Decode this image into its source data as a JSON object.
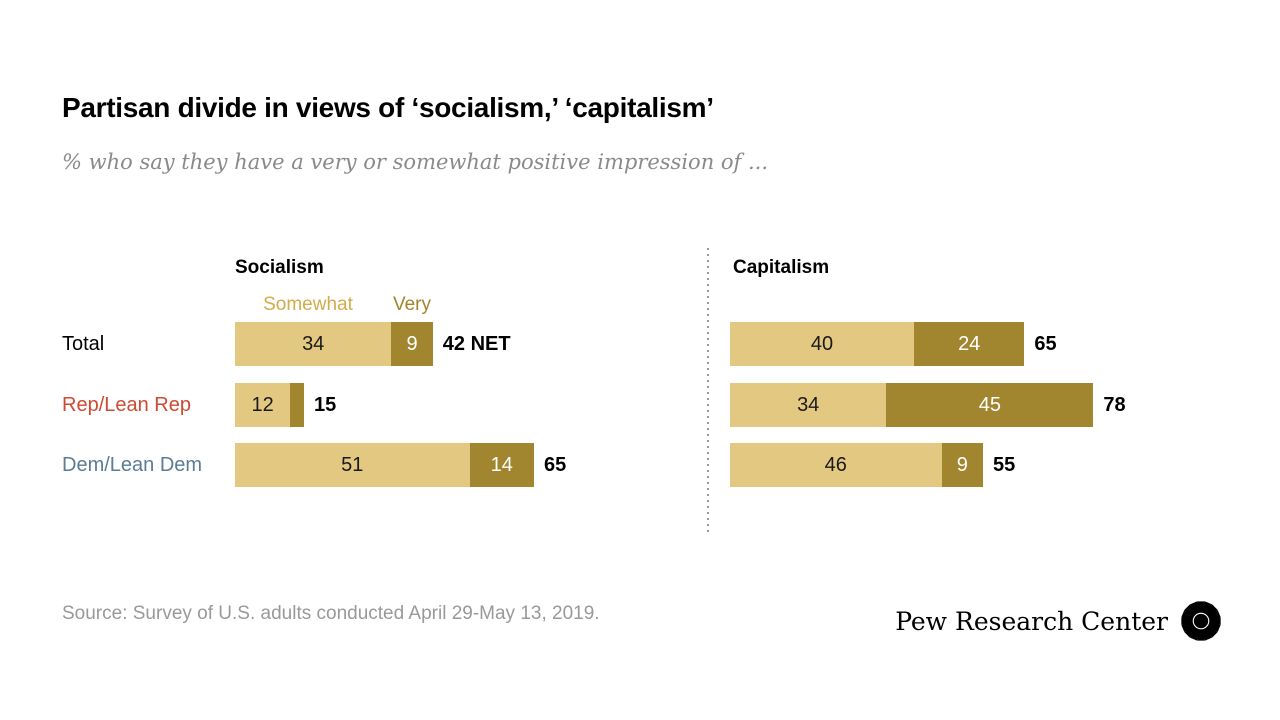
{
  "header": {
    "title": "Partisan divide in views of ‘socialism,’ ‘capitalism’",
    "subtitle": "% who say they have a very or somewhat positive impression of ..."
  },
  "footer": {
    "source": "Source: Survey of U.S. adults conducted April 29-May 13, 2019.",
    "brand": "Pew Research Center"
  },
  "colors": {
    "somewhat_bar": "#E3C882",
    "very_bar": "#A1852F",
    "somewhat_legend_text": "#D2AB4B",
    "very_legend_text": "#A1842D",
    "light_bar_value_text": "#1a1a1a",
    "dark_bar_value_text": "#ffffff",
    "total_label": "#000000",
    "rep_label": "#CF4A32",
    "dem_label": "#5A7D95",
    "subtitle_text": "#8a8a8a",
    "source_text": "#999999",
    "divider": "#9a9a9a"
  },
  "chart_data": {
    "type": "bar",
    "orientation": "horizontal",
    "stacked": true,
    "value_unit": "percent",
    "xlim": [
      0,
      100
    ],
    "grid": false,
    "legend": [
      "Somewhat",
      "Very"
    ],
    "legend_position": "above first row of Socialism panel",
    "categories": [
      {
        "label": "Total",
        "color": "#000000"
      },
      {
        "label": "Rep/Lean Rep",
        "color": "#CF4A32"
      },
      {
        "label": "Dem/Lean Dem",
        "color": "#5A7D95"
      }
    ],
    "panels": [
      {
        "title": "Socialism",
        "rows": [
          {
            "category": "Total",
            "somewhat": 34,
            "very": 9,
            "somewhat_label": "34",
            "very_label": "9",
            "net": 42,
            "net_label": "42 NET"
          },
          {
            "category": "Rep/Lean Rep",
            "somewhat": 12,
            "very": 3,
            "somewhat_label": "12",
            "very_label": "",
            "net": 15,
            "net_label": "15"
          },
          {
            "category": "Dem/Lean Dem",
            "somewhat": 51,
            "very": 14,
            "somewhat_label": "51",
            "very_label": "14",
            "net": 65,
            "net_label": "65"
          }
        ]
      },
      {
        "title": "Capitalism",
        "rows": [
          {
            "category": "Total",
            "somewhat": 40,
            "very": 24,
            "somewhat_label": "40",
            "very_label": "24",
            "net": 65,
            "net_label": "65"
          },
          {
            "category": "Rep/Lean Rep",
            "somewhat": 34,
            "very": 45,
            "somewhat_label": "34",
            "very_label": "45",
            "net": 78,
            "net_label": "78"
          },
          {
            "category": "Dem/Lean Dem",
            "somewhat": 46,
            "very": 9,
            "somewhat_label": "46",
            "very_label": "9",
            "net": 55,
            "net_label": "55"
          }
        ]
      }
    ]
  }
}
